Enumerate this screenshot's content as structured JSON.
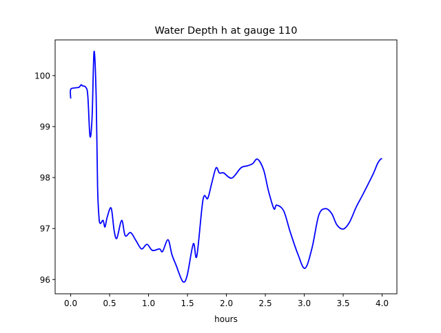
{
  "chart_data": {
    "type": "line",
    "title": "Water Depth h at gauge 110",
    "xlabel": "hours",
    "ylabel": "",
    "xlim": [
      -0.2,
      4.19
    ],
    "ylim": [
      95.72,
      100.7
    ],
    "xticks": [
      0.0,
      0.5,
      1.0,
      1.5,
      2.0,
      2.5,
      3.0,
      3.5,
      4.0
    ],
    "xtick_labels": [
      "0.0",
      "0.5",
      "1.0",
      "1.5",
      "2.0",
      "2.5",
      "3.0",
      "3.5",
      "4.0"
    ],
    "yticks": [
      96,
      97,
      98,
      99,
      100
    ],
    "ytick_labels": [
      "96",
      "97",
      "98",
      "99",
      "100"
    ],
    "grid": false,
    "series": [
      {
        "name": "h",
        "color": "#0000ff",
        "x": [
          0,
          0,
          0.062,
          0.106,
          0.135,
          0.15,
          0.195,
          0.22,
          0.248,
          0.275,
          0.3,
          0.327,
          0.345,
          0.363,
          0.38,
          0.416,
          0.44,
          0.47,
          0.52,
          0.558,
          0.593,
          0.655,
          0.7,
          0.77,
          0.84,
          0.91,
          0.98,
          1.05,
          1.14,
          1.18,
          1.25,
          1.3,
          1.354,
          1.44,
          1.496,
          1.575,
          1.62,
          1.7,
          1.76,
          1.81,
          1.867,
          1.91,
          1.965,
          2.07,
          2.186,
          2.27,
          2.336,
          2.4,
          2.478,
          2.54,
          2.61,
          2.646,
          2.735,
          2.82,
          2.92,
          3.01,
          3.1,
          3.186,
          3.27,
          3.35,
          3.42,
          3.5,
          3.58,
          3.67,
          3.75,
          3.885,
          3.94,
          3.98,
          4.0
        ],
        "y": [
          99.55,
          99.73,
          99.76,
          99.77,
          99.82,
          99.8,
          99.77,
          99.6,
          98.81,
          99.19,
          100.47,
          99.6,
          97.84,
          97.23,
          97.1,
          97.16,
          97.03,
          97.23,
          97.4,
          96.96,
          96.81,
          97.16,
          96.86,
          96.92,
          96.76,
          96.6,
          96.69,
          96.57,
          96.6,
          96.55,
          96.78,
          96.49,
          96.28,
          95.96,
          96.08,
          96.7,
          96.46,
          97.57,
          97.59,
          97.88,
          98.19,
          98.09,
          98.09,
          97.99,
          98.19,
          98.23,
          98.27,
          98.36,
          98.15,
          97.74,
          97.39,
          97.46,
          97.35,
          96.93,
          96.49,
          96.22,
          96.62,
          97.26,
          97.39,
          97.3,
          97.07,
          96.99,
          97.12,
          97.43,
          97.66,
          98.07,
          98.27,
          98.36,
          98.37
        ]
      }
    ]
  }
}
